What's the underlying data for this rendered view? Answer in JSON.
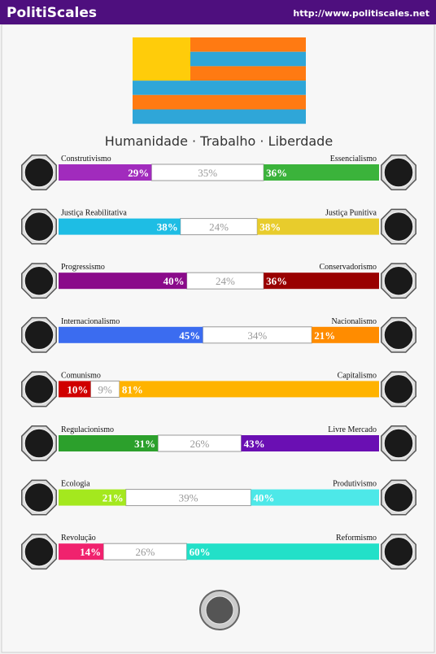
{
  "header": {
    "title": "PolitiScales",
    "url": "http://www.politiscales.net"
  },
  "slogan": "Humanidade · Trabalho · Liberdade",
  "axes": [
    {
      "left": "Construtivismo",
      "right": "Essencialismo",
      "left_value": 29,
      "left_label": "29%",
      "neutral_value": 35,
      "neutral_label": "35%",
      "right_value": 36,
      "right_label": "36%",
      "left_color": "#a12bbd",
      "right_color": "#3bb33b"
    },
    {
      "left": "Justiça Reabilitativa",
      "right": "Justiça Punitiva",
      "left_value": 38,
      "left_label": "38%",
      "neutral_value": 24,
      "neutral_label": "24%",
      "right_value": 38,
      "right_label": "38%",
      "left_color": "#1ebde4",
      "right_color": "#e8cc2c"
    },
    {
      "left": "Progressismo",
      "right": "Conservadorismo",
      "left_value": 40,
      "left_label": "40%",
      "neutral_value": 24,
      "neutral_label": "24%",
      "right_value": 36,
      "right_label": "36%",
      "left_color": "#8a0a8a",
      "right_color": "#990000"
    },
    {
      "left": "Internacionalismo",
      "right": "Nacionalismo",
      "left_value": 45,
      "left_label": "45%",
      "neutral_value": 34,
      "neutral_label": "34%",
      "right_value": 21,
      "right_label": "21%",
      "left_color": "#3b6cf0",
      "right_color": "#ff8c00"
    },
    {
      "left": "Comunismo",
      "right": "Capitalismo",
      "left_value": 10,
      "left_label": "10%",
      "neutral_value": 9,
      "neutral_label": "9%",
      "right_value": 81,
      "right_label": "81%",
      "left_color": "#d00000",
      "right_color": "#ffb300"
    },
    {
      "left": "Regulacionismo",
      "right": "Livre Mercado",
      "left_value": 31,
      "left_label": "31%",
      "neutral_value": 26,
      "neutral_label": "26%",
      "right_value": 43,
      "right_label": "43%",
      "left_color": "#2ca02c",
      "right_color": "#6a0fb3"
    },
    {
      "left": "Ecologia",
      "right": "Produtivismo",
      "left_value": 21,
      "left_label": "21%",
      "neutral_value": 39,
      "neutral_label": "39%",
      "right_value": 40,
      "right_label": "40%",
      "left_color": "#a4e81e",
      "right_color": "#4de8e8"
    },
    {
      "left": "Revolução",
      "right": "Reformismo",
      "left_value": 14,
      "left_label": "14%",
      "neutral_value": 26,
      "neutral_label": "26%",
      "right_value": 60,
      "right_label": "60%",
      "left_color": "#f0226e",
      "right_color": "#22e0c8"
    }
  ]
}
